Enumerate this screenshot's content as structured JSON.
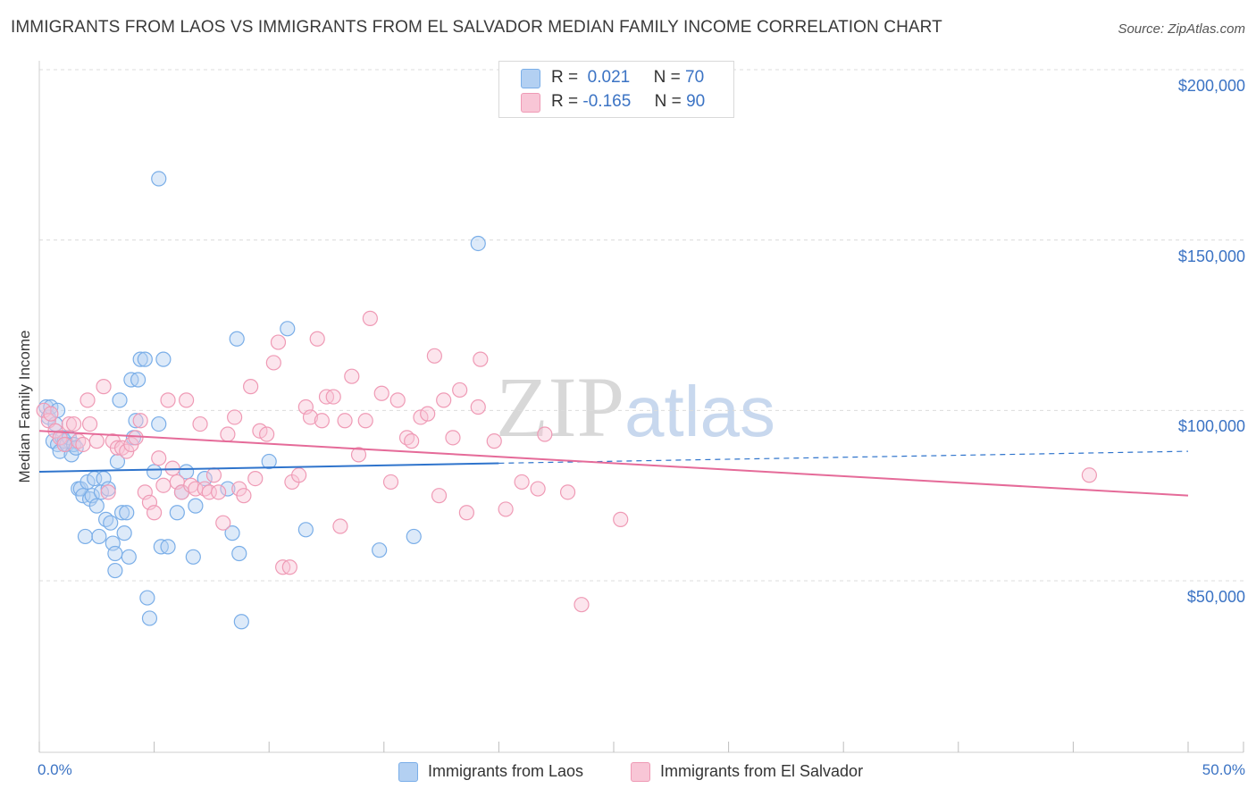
{
  "chart_data": {
    "type": "scatter",
    "title": "IMMIGRANTS FROM LAOS VS IMMIGRANTS FROM EL SALVADOR MEDIAN FAMILY INCOME CORRELATION CHART",
    "source": "Source: ZipAtlas.com",
    "xlabel": "",
    "ylabel": "Median Family Income",
    "x_tick_labels": {
      "min": "0.0%",
      "max": "50.0%"
    },
    "y_tick_labels": [
      "$50,000",
      "$100,000",
      "$150,000",
      "$200,000"
    ],
    "y_tick_values": [
      50000,
      100000,
      150000,
      200000
    ],
    "xlim": [
      0,
      50
    ],
    "ylim": [
      0,
      205000
    ],
    "grid": true,
    "legend": {
      "position": "top-center",
      "rows": [
        {
          "r_label": "R =",
          "r_value": "0.021",
          "n_label": "N =",
          "n_value": "70"
        },
        {
          "r_label": "R =",
          "r_value": "-0.165",
          "n_label": "N =",
          "n_value": "90"
        }
      ]
    },
    "watermark": {
      "part1": "ZIP",
      "part2": "atlas"
    },
    "series": [
      {
        "name": "Immigrants from Laos",
        "color": "#7aaee8",
        "fill": "#b3d0f2",
        "trend_color": "#2f74cc",
        "trend": {
          "x0": 0,
          "y0": 82000,
          "x1": 20,
          "y1": 84500,
          "dashed_to_x": 50,
          "dashed_to_y": 88000
        },
        "points": [
          [
            0.3,
            101000
          ],
          [
            0.4,
            98000
          ],
          [
            0.5,
            101000
          ],
          [
            0.6,
            91000
          ],
          [
            0.7,
            96000
          ],
          [
            0.8,
            90000
          ],
          [
            0.9,
            88000
          ],
          [
            1.0,
            92000
          ],
          [
            1.1,
            91000
          ],
          [
            1.2,
            90000
          ],
          [
            1.3,
            92000
          ],
          [
            1.4,
            87000
          ],
          [
            1.5,
            90000
          ],
          [
            1.6,
            89000
          ],
          [
            1.7,
            77000
          ],
          [
            1.8,
            77000
          ],
          [
            1.9,
            75000
          ],
          [
            2.0,
            63000
          ],
          [
            2.1,
            79000
          ],
          [
            2.2,
            74000
          ],
          [
            2.3,
            75000
          ],
          [
            2.4,
            80000
          ],
          [
            2.5,
            72000
          ],
          [
            2.6,
            63000
          ],
          [
            2.7,
            76000
          ],
          [
            2.8,
            80000
          ],
          [
            2.9,
            68000
          ],
          [
            3.0,
            77000
          ],
          [
            3.1,
            67000
          ],
          [
            3.2,
            61000
          ],
          [
            3.3,
            58000
          ],
          [
            3.3,
            53000
          ],
          [
            3.4,
            85000
          ],
          [
            3.5,
            103000
          ],
          [
            3.6,
            70000
          ],
          [
            3.7,
            64000
          ],
          [
            3.8,
            70000
          ],
          [
            3.9,
            57000
          ],
          [
            4.0,
            109000
          ],
          [
            4.1,
            92000
          ],
          [
            4.2,
            97000
          ],
          [
            4.3,
            109000
          ],
          [
            4.4,
            115000
          ],
          [
            4.6,
            115000
          ],
          [
            4.7,
            45000
          ],
          [
            4.8,
            39000
          ],
          [
            5.0,
            82000
          ],
          [
            5.2,
            168000
          ],
          [
            5.2,
            96000
          ],
          [
            5.3,
            60000
          ],
          [
            5.4,
            115000
          ],
          [
            5.6,
            60000
          ],
          [
            6.0,
            70000
          ],
          [
            6.2,
            76000
          ],
          [
            6.4,
            82000
          ],
          [
            6.7,
            57000
          ],
          [
            6.8,
            72000
          ],
          [
            7.2,
            80000
          ],
          [
            8.2,
            77000
          ],
          [
            8.4,
            64000
          ],
          [
            8.6,
            121000
          ],
          [
            8.7,
            58000
          ],
          [
            8.8,
            38000
          ],
          [
            10.0,
            85000
          ],
          [
            10.8,
            124000
          ],
          [
            11.6,
            65000
          ],
          [
            14.8,
            59000
          ],
          [
            16.3,
            63000
          ],
          [
            19.1,
            149000
          ],
          [
            0.8,
            100000
          ]
        ]
      },
      {
        "name": "Immigrants from El Salvador",
        "color": "#ef9ab5",
        "fill": "#f8c6d6",
        "trend_color": "#e56b99",
        "trend": {
          "x0": 0,
          "y0": 94000,
          "x1": 50,
          "y1": 75000
        },
        "points": [
          [
            0.2,
            100000
          ],
          [
            0.4,
            97000
          ],
          [
            0.5,
            99000
          ],
          [
            0.7,
            94000
          ],
          [
            0.9,
            92000
          ],
          [
            1.1,
            90000
          ],
          [
            1.3,
            96000
          ],
          [
            1.5,
            96000
          ],
          [
            1.7,
            91000
          ],
          [
            1.9,
            90000
          ],
          [
            2.1,
            103000
          ],
          [
            2.2,
            96000
          ],
          [
            2.5,
            91000
          ],
          [
            2.8,
            107000
          ],
          [
            3.0,
            76000
          ],
          [
            3.2,
            91000
          ],
          [
            3.4,
            89000
          ],
          [
            3.6,
            89000
          ],
          [
            3.8,
            88000
          ],
          [
            4.0,
            90000
          ],
          [
            4.2,
            92000
          ],
          [
            4.4,
            97000
          ],
          [
            4.6,
            76000
          ],
          [
            4.8,
            73000
          ],
          [
            5.0,
            70000
          ],
          [
            5.2,
            86000
          ],
          [
            5.4,
            78000
          ],
          [
            5.6,
            103000
          ],
          [
            5.8,
            83000
          ],
          [
            6.0,
            79000
          ],
          [
            6.2,
            76000
          ],
          [
            6.4,
            103000
          ],
          [
            6.6,
            78000
          ],
          [
            6.8,
            77000
          ],
          [
            7.0,
            96000
          ],
          [
            7.2,
            77000
          ],
          [
            7.4,
            76000
          ],
          [
            7.6,
            81000
          ],
          [
            7.8,
            76000
          ],
          [
            8.0,
            67000
          ],
          [
            8.2,
            93000
          ],
          [
            8.5,
            98000
          ],
          [
            8.7,
            77000
          ],
          [
            8.9,
            75000
          ],
          [
            9.2,
            107000
          ],
          [
            9.4,
            80000
          ],
          [
            9.6,
            94000
          ],
          [
            9.9,
            93000
          ],
          [
            10.2,
            114000
          ],
          [
            10.4,
            120000
          ],
          [
            10.6,
            54000
          ],
          [
            10.9,
            54000
          ],
          [
            11.0,
            79000
          ],
          [
            11.3,
            81000
          ],
          [
            11.6,
            101000
          ],
          [
            11.8,
            98000
          ],
          [
            12.1,
            121000
          ],
          [
            12.3,
            97000
          ],
          [
            12.5,
            104000
          ],
          [
            12.8,
            104000
          ],
          [
            13.1,
            66000
          ],
          [
            13.3,
            97000
          ],
          [
            13.6,
            110000
          ],
          [
            13.9,
            87000
          ],
          [
            14.2,
            97000
          ],
          [
            14.4,
            127000
          ],
          [
            14.9,
            105000
          ],
          [
            15.3,
            79000
          ],
          [
            15.6,
            103000
          ],
          [
            16.0,
            92000
          ],
          [
            16.2,
            91000
          ],
          [
            16.6,
            98000
          ],
          [
            16.9,
            99000
          ],
          [
            17.2,
            116000
          ],
          [
            17.4,
            75000
          ],
          [
            17.6,
            103000
          ],
          [
            18.0,
            92000
          ],
          [
            18.3,
            106000
          ],
          [
            18.6,
            70000
          ],
          [
            19.1,
            101000
          ],
          [
            19.2,
            115000
          ],
          [
            19.8,
            91000
          ],
          [
            20.3,
            71000
          ],
          [
            21.0,
            79000
          ],
          [
            21.7,
            77000
          ],
          [
            22.0,
            93000
          ],
          [
            23.0,
            76000
          ],
          [
            23.6,
            43000
          ],
          [
            25.3,
            68000
          ],
          [
            45.7,
            81000
          ]
        ]
      }
    ]
  },
  "bottom_legend": {
    "laos_label": "Immigrants from Laos",
    "salvador_label": "Immigrants from El Salvador"
  }
}
